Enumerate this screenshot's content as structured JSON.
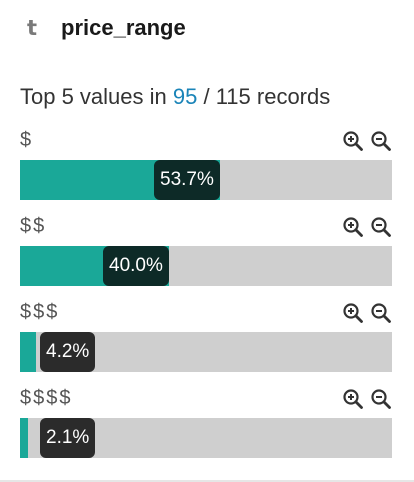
{
  "field": {
    "type_symbol": "t",
    "name": "price_range",
    "type_icon": "text-type-icon"
  },
  "summary": {
    "prefix": "Top 5 values in ",
    "count": "95",
    "suffix": " / 115 records"
  },
  "colors": {
    "bar_fill": "#1aa898",
    "bar_track": "#cfcfcf",
    "link": "#1a84b8"
  },
  "values": [
    {
      "label": "$",
      "percent_text": "53.7%",
      "fraction": 0.537
    },
    {
      "label": "$$",
      "percent_text": "40.0%",
      "fraction": 0.4
    },
    {
      "label": "$$$",
      "percent_text": "4.2%",
      "fraction": 0.042
    },
    {
      "label": "$$$$",
      "percent_text": "2.1%",
      "fraction": 0.021
    }
  ],
  "icons": {
    "zoom_in": "zoom-in-icon",
    "zoom_out": "zoom-out-icon"
  }
}
